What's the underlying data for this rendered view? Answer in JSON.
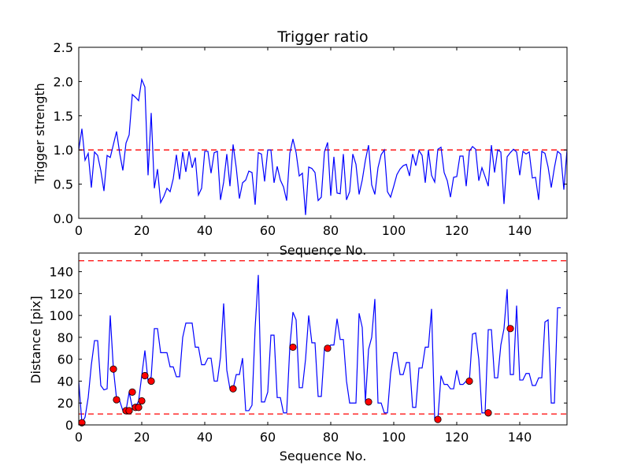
{
  "figure": {
    "background": "#ffffff"
  },
  "chart_data": [
    {
      "type": "line",
      "title": "Trigger ratio",
      "xlabel": "Sequence No.",
      "ylabel": "Trigger strength",
      "xlim": [
        0,
        155
      ],
      "ylim": [
        0,
        2.5
      ],
      "xticks": [
        0,
        20,
        40,
        60,
        80,
        100,
        120,
        140
      ],
      "xtick_labels": [
        "0",
        "20",
        "40",
        "60",
        "80",
        "100",
        "120",
        "140"
      ],
      "yticks": [
        0,
        0.5,
        1.0,
        1.5,
        2.0,
        2.5
      ],
      "ytick_labels": [
        "0.0",
        "0.5",
        "1.0",
        "1.5",
        "2.0",
        "2.5"
      ],
      "line_color": "#0000ff",
      "thresholds": [
        {
          "y": 1.0,
          "color": "#ff0000",
          "style": "dashed"
        }
      ],
      "series": [
        {
          "name": "Trigger strength",
          "values": [
            1.0,
            1.31,
            0.85,
            0.95,
            0.45,
            0.97,
            0.92,
            0.7,
            0.4,
            0.92,
            0.89,
            1.08,
            1.27,
            0.95,
            0.7,
            1.1,
            1.22,
            1.81,
            1.77,
            1.72,
            2.03,
            1.92,
            0.63,
            1.54,
            0.44,
            0.72,
            0.23,
            0.32,
            0.44,
            0.39,
            0.58,
            0.93,
            0.57,
            0.97,
            0.68,
            0.98,
            0.74,
            0.89,
            0.34,
            0.44,
            0.98,
            0.98,
            0.66,
            0.96,
            0.98,
            0.27,
            0.53,
            0.94,
            0.47,
            1.08,
            0.74,
            0.29,
            0.52,
            0.56,
            0.69,
            0.67,
            0.2,
            0.96,
            0.94,
            0.54,
            1.0,
            1.0,
            0.52,
            0.76,
            0.56,
            0.46,
            0.26,
            0.95,
            1.16,
            0.96,
            0.62,
            0.66,
            0.05,
            0.75,
            0.73,
            0.67,
            0.26,
            0.31,
            0.97,
            1.11,
            0.33,
            0.9,
            0.37,
            0.36,
            0.94,
            0.27,
            0.39,
            0.94,
            0.79,
            0.35,
            0.56,
            0.85,
            1.07,
            0.49,
            0.35,
            0.74,
            0.93,
            1.0,
            0.39,
            0.31,
            0.47,
            0.64,
            0.72,
            0.77,
            0.79,
            0.62,
            0.94,
            0.77,
            0.99,
            0.92,
            0.52,
            1.0,
            0.63,
            0.53,
            1.01,
            1.04,
            0.67,
            0.55,
            0.31,
            0.6,
            0.61,
            0.91,
            0.91,
            0.47,
            0.98,
            1.05,
            1.01,
            0.55,
            0.74,
            0.61,
            0.47,
            1.07,
            0.67,
            1.0,
            0.97,
            0.21,
            0.9,
            0.96,
            1.01,
            0.97,
            0.63,
            0.98,
            0.94,
            0.97,
            0.59,
            0.6,
            0.27,
            0.98,
            0.95,
            0.75,
            0.45,
            0.74,
            0.98,
            0.94,
            0.42,
            1.0,
            1.0,
            0.42
          ]
        }
      ]
    },
    {
      "type": "line",
      "title": "",
      "xlabel": "Sequence No.",
      "ylabel": "Distance [pix]",
      "xlim": [
        0,
        155
      ],
      "ylim": [
        0,
        157
      ],
      "xticks": [
        0,
        20,
        40,
        60,
        80,
        100,
        120,
        140
      ],
      "xtick_labels": [
        "0",
        "20",
        "40",
        "60",
        "80",
        "100",
        "120",
        "140"
      ],
      "yticks": [
        0,
        20,
        40,
        60,
        80,
        100,
        120,
        140
      ],
      "ytick_labels": [
        "0",
        "20",
        "40",
        "60",
        "80",
        "100",
        "120",
        "140"
      ],
      "line_color": "#0000ff",
      "marker_color": "#ff0000",
      "thresholds": [
        {
          "y": 10,
          "color": "#ff0000",
          "style": "dashed"
        },
        {
          "y": 150,
          "color": "#ff0000",
          "style": "dashed"
        }
      ],
      "series": [
        {
          "name": "Distance",
          "values": [
            40,
            2,
            7,
            25,
            55,
            77,
            77,
            36,
            32,
            33,
            100,
            51,
            24,
            22,
            13,
            13,
            30,
            16,
            16,
            22,
            45,
            68,
            40,
            44,
            88,
            88,
            66,
            66,
            66,
            53,
            53,
            44,
            44,
            80,
            93,
            93,
            93,
            71,
            71,
            55,
            55,
            61,
            61,
            40,
            40,
            62,
            111,
            50,
            33,
            33,
            46,
            46,
            61,
            13,
            13,
            18,
            89,
            137,
            21,
            21,
            30,
            82,
            82,
            25,
            25,
            11,
            11,
            71,
            103,
            96,
            34,
            34,
            60,
            100,
            75,
            75,
            26,
            26,
            70,
            70,
            73,
            73,
            97,
            78,
            78,
            40,
            20,
            20,
            20,
            102,
            89,
            21,
            69,
            80,
            115,
            20,
            20,
            11,
            11,
            47,
            66,
            66,
            46,
            46,
            57,
            57,
            16,
            16,
            52,
            52,
            71,
            71,
            106,
            5,
            5,
            45,
            37,
            37,
            33,
            33,
            50,
            37,
            37,
            40,
            40,
            83,
            84,
            60,
            11,
            11,
            87,
            87,
            43,
            43,
            73,
            88,
            124,
            46,
            46,
            109,
            41,
            41,
            47,
            47,
            36,
            36,
            43,
            43,
            94,
            96,
            20,
            20,
            107,
            107
          ],
          "highlighted_points": [
            {
              "x": 1,
              "y": 2
            },
            {
              "x": 11,
              "y": 51
            },
            {
              "x": 12,
              "y": 23
            },
            {
              "x": 15,
              "y": 13
            },
            {
              "x": 16,
              "y": 13
            },
            {
              "x": 17,
              "y": 30
            },
            {
              "x": 18,
              "y": 16
            },
            {
              "x": 19,
              "y": 16
            },
            {
              "x": 20,
              "y": 22
            },
            {
              "x": 21,
              "y": 45
            },
            {
              "x": 23,
              "y": 40
            },
            {
              "x": 49,
              "y": 33
            },
            {
              "x": 68,
              "y": 71
            },
            {
              "x": 79,
              "y": 70
            },
            {
              "x": 92,
              "y": 21
            },
            {
              "x": 114,
              "y": 5
            },
            {
              "x": 124,
              "y": 40
            },
            {
              "x": 130,
              "y": 11
            },
            {
              "x": 137,
              "y": 88
            }
          ]
        }
      ]
    }
  ]
}
